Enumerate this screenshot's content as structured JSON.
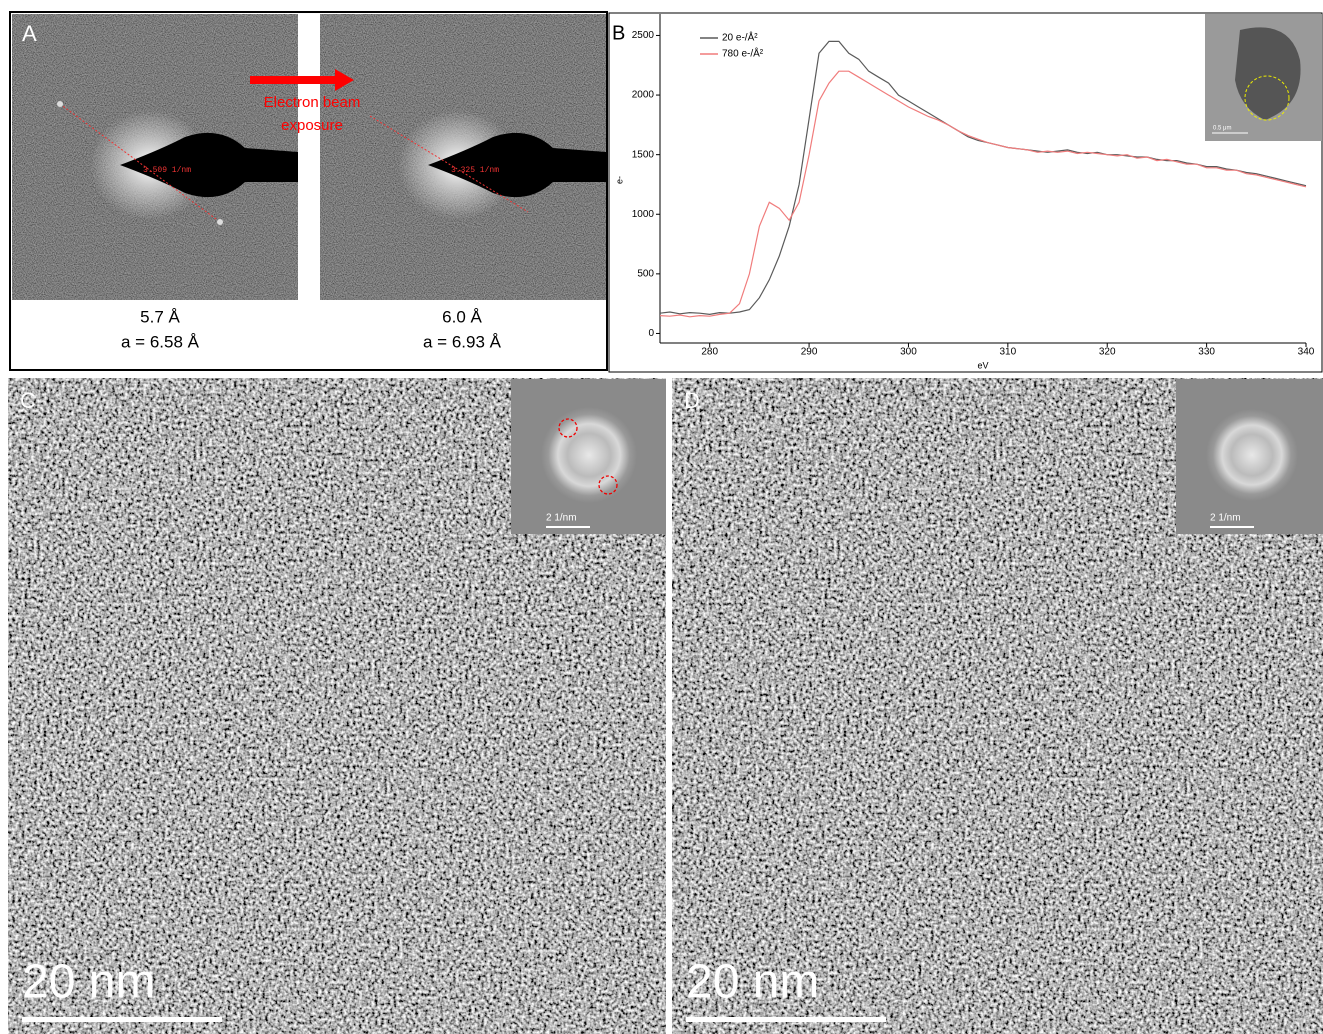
{
  "panels": {
    "A": {
      "label": "A",
      "arrow_text": [
        "Electron beam",
        "exposure"
      ],
      "left": {
        "measure": "3.509 1/nm",
        "spacing": "5.7 Å",
        "lattice": "a = 6.58 Å"
      },
      "right": {
        "measure": "3.325 1/nm",
        "spacing": "6.0 Å",
        "lattice": "a = 6.93 Å"
      }
    },
    "B": {
      "label": "B",
      "inset_scale": "0.5 μm"
    },
    "C": {
      "label": "C",
      "scale_bar": "20 nm",
      "inset_scale": "2 1/nm"
    },
    "D": {
      "label": "D",
      "scale_bar": "20 nm",
      "inset_scale": "2 1/nm"
    }
  },
  "chart_data": {
    "type": "line",
    "x_label": "eV",
    "y_label": "e-",
    "x": [
      275,
      276,
      277,
      278,
      279,
      280,
      281,
      282,
      283,
      284,
      285,
      286,
      287,
      288,
      289,
      290,
      291,
      292,
      293,
      294,
      295,
      296,
      297,
      298,
      299,
      300,
      301,
      302,
      303,
      304,
      305,
      306,
      307,
      308,
      309,
      310,
      311,
      312,
      313,
      314,
      315,
      316,
      317,
      318,
      319,
      320,
      321,
      322,
      323,
      324,
      325,
      326,
      327,
      328,
      329,
      330,
      331,
      332,
      333,
      334,
      335,
      336,
      337,
      338,
      339,
      340
    ],
    "series": [
      {
        "name": "20 e-/Å²",
        "color": "#5a5a5a",
        "values": [
          170,
          180,
          165,
          175,
          170,
          160,
          175,
          170,
          180,
          200,
          300,
          450,
          650,
          900,
          1250,
          1800,
          2350,
          2450,
          2450,
          2350,
          2300,
          2200,
          2150,
          2100,
          2000,
          1950,
          1900,
          1850,
          1800,
          1750,
          1700,
          1650,
          1620,
          1600,
          1580,
          1560,
          1550,
          1540,
          1530,
          1520,
          1530,
          1540,
          1520,
          1510,
          1520,
          1500,
          1500,
          1490,
          1480,
          1480,
          1460,
          1450,
          1450,
          1430,
          1420,
          1400,
          1400,
          1380,
          1370,
          1350,
          1340,
          1320,
          1300,
          1280,
          1260,
          1240
        ]
      },
      {
        "name": "780 e-/Å²",
        "color": "#f07c7c",
        "values": [
          150,
          145,
          155,
          140,
          150,
          145,
          160,
          170,
          250,
          500,
          900,
          1100,
          1050,
          950,
          1100,
          1500,
          1950,
          2100,
          2200,
          2200,
          2150,
          2100,
          2050,
          2000,
          1950,
          1900,
          1860,
          1820,
          1790,
          1750,
          1700,
          1660,
          1630,
          1600,
          1580,
          1560,
          1550,
          1540,
          1520,
          1530,
          1520,
          1530,
          1510,
          1520,
          1510,
          1500,
          1490,
          1500,
          1470,
          1480,
          1450,
          1460,
          1440,
          1420,
          1420,
          1390,
          1390,
          1370,
          1370,
          1340,
          1330,
          1310,
          1290,
          1270,
          1250,
          1230
        ]
      }
    ],
    "xlim": [
      275,
      340
    ],
    "xticks": [
      280,
      290,
      300,
      310,
      320,
      330,
      340
    ],
    "ylim": [
      -80,
      2680
    ],
    "yticks": [
      0,
      500,
      1000,
      1500,
      2000,
      2500
    ],
    "legend": "upper left"
  }
}
